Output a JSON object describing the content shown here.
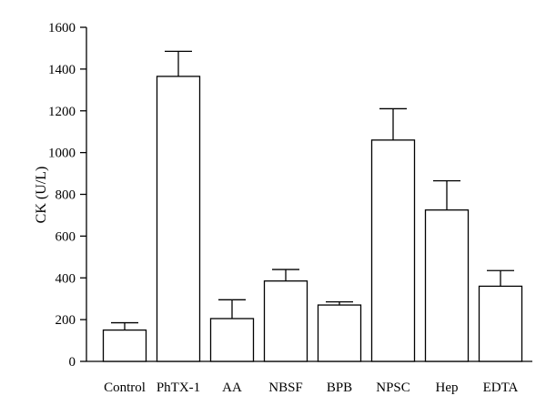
{
  "chart_data": {
    "type": "bar",
    "title": "",
    "xlabel": "",
    "ylabel": "CK (U/L)",
    "ylim": [
      0,
      1600
    ],
    "yticks": [
      0,
      200,
      400,
      600,
      800,
      1000,
      1200,
      1400,
      1600
    ],
    "grid": false,
    "categories": [
      "Control",
      "PhTX-1",
      "AA",
      "NBSF",
      "BPB",
      "NPSC",
      "Hep",
      "EDTA"
    ],
    "values": [
      150,
      1365,
      205,
      385,
      270,
      1060,
      725,
      360
    ],
    "error_plus": [
      35,
      120,
      90,
      55,
      15,
      150,
      140,
      75
    ],
    "bar_color": "#ffffff",
    "edge_color": "#000000"
  }
}
